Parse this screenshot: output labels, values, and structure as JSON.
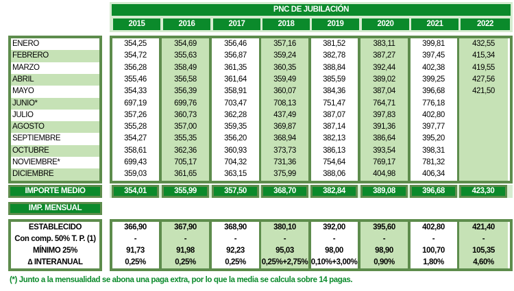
{
  "title": "PNC DE JUBILACIÓN",
  "years": [
    "2015",
    "2016",
    "2017",
    "2018",
    "2019",
    "2020",
    "2021",
    "2022"
  ],
  "months": [
    "ENERO",
    "FEBRERO",
    "MARZO",
    "ABRIL",
    "MAYO",
    "JUNIO*",
    "JULIO",
    "AGOSTO",
    "SEPTIEMBRE",
    "OCTUBRE",
    "NOVIEMBRE*",
    "DICIEMBRE"
  ],
  "values": [
    [
      "354,25",
      "354,72",
      "356,28",
      "355,46",
      "354,33",
      "697,19",
      "357,26",
      "355,28",
      "354,27",
      "358,61",
      "699,43",
      "359,03"
    ],
    [
      "354,69",
      "355,63",
      "358,49",
      "356,58",
      "356,39",
      "699,76",
      "360,73",
      "357,00",
      "355,35",
      "362,36",
      "705,17",
      "361,65"
    ],
    [
      "356,46",
      "356,87",
      "361,35",
      "361,64",
      "358,91",
      "703,47",
      "362,28",
      "359,35",
      "356,20",
      "360,93",
      "704,32",
      "363,15"
    ],
    [
      "357,16",
      "359,24",
      "360,35",
      "359,49",
      "360,07",
      "708,13",
      "437,49",
      "369,87",
      "368,94",
      "373,73",
      "731,36",
      "375,99"
    ],
    [
      "381,52",
      "382,78",
      "388,84",
      "385,59",
      "384,36",
      "751,47",
      "387,07",
      "387,14",
      "382,13",
      "386,13",
      "754,64",
      "388,06"
    ],
    [
      "383,11",
      "387,27",
      "392,44",
      "389,02",
      "387,04",
      "764,71",
      "397,83",
      "391,36",
      "386,64",
      "393,54",
      "769,17",
      "404,98"
    ],
    [
      "399,81",
      "397,45",
      "402,38",
      "399,25",
      "396,68",
      "776,18",
      "402,80",
      "397,77",
      "395,20",
      "398,31",
      "781,32",
      "406,34"
    ],
    [
      "432,55",
      "415,34",
      "419,55",
      "427,56",
      "421,50",
      "",
      "",
      "",
      "",
      "",
      "",
      ""
    ]
  ],
  "importe_medio": {
    "label": "IMPORTE MEDIO",
    "values": [
      "354,01",
      "355,99",
      "357,50",
      "368,70",
      "382,84",
      "389,08",
      "396,68",
      "423,30"
    ]
  },
  "imp_mensual": {
    "label": "IMP. MENSUAL"
  },
  "bottom": {
    "labels": [
      "ESTABLECIDO",
      "Con comp. 50% T. P. (1)",
      "MÍNIMO 25%",
      "∆ INTERANUAL"
    ],
    "values": [
      [
        "366,90",
        "-",
        "91,73",
        "0,25%"
      ],
      [
        "367,90",
        "-",
        "91,98",
        "0,25%"
      ],
      [
        "368,90",
        "-",
        "92,23",
        "0,25%"
      ],
      [
        "380,10",
        "-",
        "95,03",
        "0,25%+2,75%"
      ],
      [
        "392,00",
        "-",
        "98,00",
        "0,10%+3,00%"
      ],
      [
        "395,60",
        "-",
        "98,90",
        "0,90%"
      ],
      [
        "402,80",
        "-",
        "100,70",
        "1,80%"
      ],
      [
        "421,40",
        "-",
        "105,35",
        "4,60%"
      ]
    ]
  },
  "footnote": "(*) Junto a la mensualidad se abona una paga extra, por lo que la media se calcula sobre 14 pagas.",
  "colors": {
    "dark_green": "#0b8a2b",
    "light_green": "#c6e2b6",
    "border": "#5d8c4c"
  }
}
